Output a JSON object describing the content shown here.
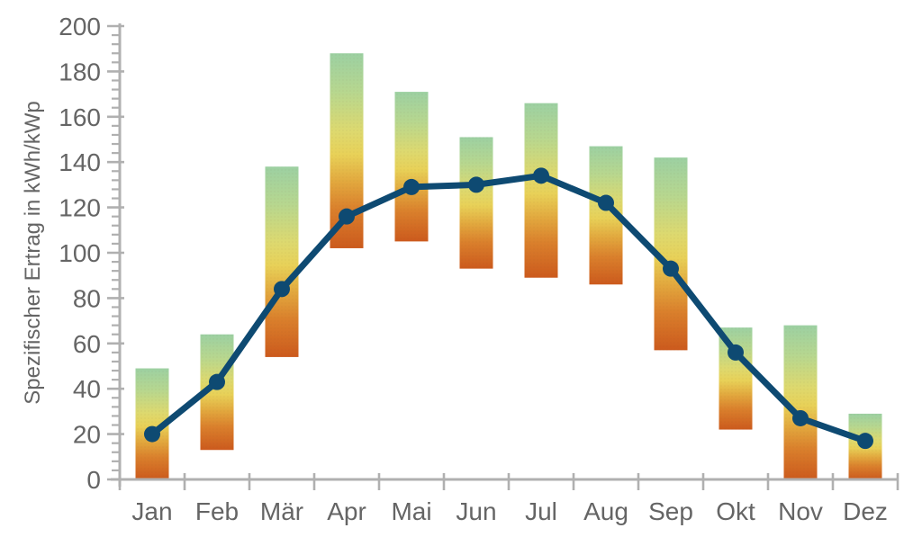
{
  "chart_data": {
    "type": "bar",
    "subtype": "range-bars-with-line-overlay",
    "title": "",
    "xlabel": "",
    "ylabel": "Spezifischer Ertrag in kWh/kWp",
    "categories": [
      "Jan",
      "Feb",
      "Mär",
      "Apr",
      "Mai",
      "Jun",
      "Jul",
      "Aug",
      "Sep",
      "Okt",
      "Nov",
      "Dez"
    ],
    "series": [
      {
        "name": "range-bars",
        "type": "bar-range",
        "min": [
          0,
          13,
          54,
          102,
          105,
          93,
          89,
          86,
          57,
          22,
          0,
          0
        ],
        "max": [
          49,
          64,
          138,
          188,
          171,
          151,
          166,
          147,
          142,
          67,
          68,
          29
        ]
      },
      {
        "name": "line",
        "type": "line",
        "values": [
          20,
          43,
          84,
          116,
          129,
          130,
          134,
          122,
          93,
          56,
          27,
          17
        ]
      }
    ],
    "ylim": [
      0,
      200
    ],
    "y_major_step": 20,
    "y_minor_subdivisions": 5,
    "y_tick_labels": [
      "0",
      "20",
      "40",
      "60",
      "80",
      "100",
      "120",
      "140",
      "160",
      "180",
      "200"
    ],
    "grid": false,
    "legend": false,
    "colors": {
      "line": "#0e4a72",
      "axis": "#b0b0b0",
      "text": "#656565",
      "bar_gradient_stops": [
        {
          "offset": 0.0,
          "color": "#9cd0a2"
        },
        {
          "offset": 0.2,
          "color": "#b7d78f"
        },
        {
          "offset": 0.4,
          "color": "#ddd96f"
        },
        {
          "offset": 0.52,
          "color": "#e8d158"
        },
        {
          "offset": 0.66,
          "color": "#e2a83e"
        },
        {
          "offset": 0.8,
          "color": "#da802c"
        },
        {
          "offset": 1.0,
          "color": "#cc5a1d"
        }
      ]
    }
  }
}
